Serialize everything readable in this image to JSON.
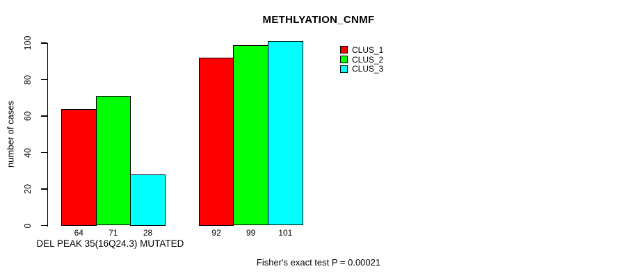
{
  "chart_data": {
    "type": "bar",
    "title": "METHLYATION_CNMF",
    "ylabel": "number of cases",
    "xlabel": "",
    "yticks": [
      0,
      20,
      40,
      60,
      80,
      100
    ],
    "ylim": [
      0,
      105
    ],
    "grid": false,
    "legend_position": "top-right",
    "series": [
      {
        "name": "CLUS_1",
        "color": "#ff0000"
      },
      {
        "name": "CLUS_2",
        "color": "#00ff00"
      },
      {
        "name": "CLUS_3",
        "color": "#00ffff"
      }
    ],
    "groups": [
      {
        "label": "DEL PEAK 35(16Q24.3) MUTATED",
        "values": [
          64,
          71,
          28
        ],
        "bar_labels": [
          "64",
          "71",
          "28"
        ]
      },
      {
        "label": "",
        "values": [
          92,
          99,
          101
        ],
        "bar_labels": [
          "92",
          "99",
          "101"
        ]
      }
    ],
    "annotation": "Fisher's exact test P = 0.00021"
  }
}
